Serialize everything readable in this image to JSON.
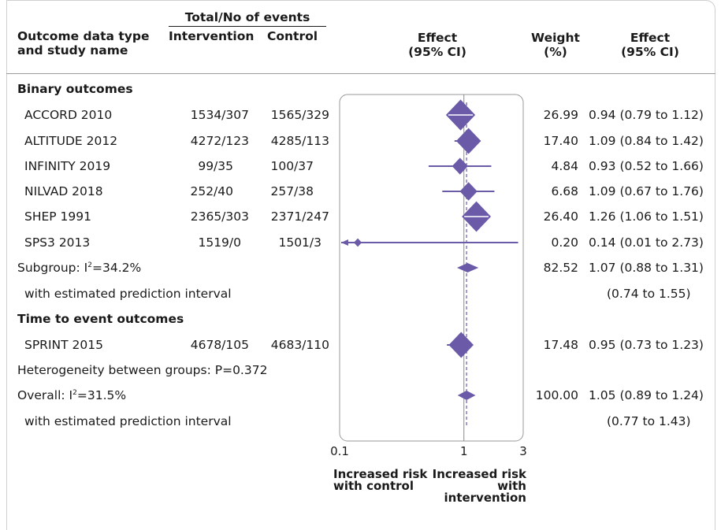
{
  "header": {
    "events_group": "Total/No of events",
    "col_study_line1": "Outcome data type",
    "col_study_line2": "and study name",
    "col_intervention": "Intervention",
    "col_control": "Control",
    "col_effect_plot_line1": "Effect",
    "col_effect_plot_line2": "(95% CI)",
    "col_weight_line1": "Weight",
    "col_weight_line2": "(%)",
    "col_effect_line1": "Effect",
    "col_effect_line2": "(95% CI)"
  },
  "rows": [
    {
      "kind": "section",
      "label": "Binary outcomes"
    },
    {
      "kind": "study",
      "label": "ACCORD 2010",
      "intervention": "1534/307",
      "control": "1565/329",
      "weight": "26.99",
      "effect_text": "0.94 (0.79 to 1.12)"
    },
    {
      "kind": "study",
      "label": "ALTITUDE 2012",
      "intervention": "4272/123",
      "control": "4285/113",
      "weight": "17.40",
      "effect_text": "1.09 (0.84 to 1.42)"
    },
    {
      "kind": "study",
      "label": "INFINITY 2019",
      "intervention": "99/35",
      "control": "100/37",
      "weight": "4.84",
      "effect_text": "0.93 (0.52 to 1.66)"
    },
    {
      "kind": "study",
      "label": "NILVAD 2018",
      "intervention": "252/40",
      "control": "257/38",
      "weight": "6.68",
      "effect_text": "1.09 (0.67 to 1.76)"
    },
    {
      "kind": "study",
      "label": "SHEP 1991",
      "intervention": "2365/303",
      "control": "2371/247",
      "weight": "26.40",
      "effect_text": "1.26 (1.06 to 1.51)"
    },
    {
      "kind": "study",
      "label": "SPS3 2013",
      "intervention": "1519/0",
      "control": "1501/3",
      "weight": "0.20",
      "effect_text": "0.14 (0.01 to 2.73)"
    },
    {
      "kind": "subtotal",
      "label_prefix": "Subgroup: I",
      "label_sup": "2",
      "label_suffix": "=34.2%",
      "weight": "82.52",
      "effect_text": "1.07 (0.88 to 1.31)"
    },
    {
      "kind": "pi",
      "label": "with estimated prediction interval",
      "effect_text": "(0.74 to 1.55)"
    },
    {
      "kind": "section",
      "label": "Time to event outcomes"
    },
    {
      "kind": "study",
      "label": "SPRINT 2015",
      "intervention": "4678/105",
      "control": "4683/110",
      "weight": "17.48",
      "effect_text": "0.95 (0.73 to 1.23)"
    },
    {
      "kind": "note",
      "label": "Heterogeneity between groups: P=0.372"
    },
    {
      "kind": "subtotal",
      "label_prefix": "Overall: I",
      "label_sup": "2",
      "label_suffix": "=31.5%",
      "weight": "100.00",
      "effect_text": "1.05 (0.89 to 1.24)"
    },
    {
      "kind": "pi",
      "label": "with estimated prediction interval",
      "effect_text": "(0.77 to 1.43)"
    }
  ],
  "chart_data": {
    "type": "forest",
    "x_scale": "log",
    "xlim": [
      0.1,
      3
    ],
    "x_ticks": [
      0.1,
      1,
      3
    ],
    "x_tick_labels": [
      "0.1",
      "1",
      "3"
    ],
    "reference_line": 1,
    "overall_effect_line": 1.05,
    "left_label": "Increased risk with control",
    "right_label": "Increased risk with intervention",
    "marker_color": "#6a5aa8",
    "studies": [
      {
        "name": "ACCORD 2010",
        "est": 0.94,
        "lo": 0.79,
        "hi": 1.12,
        "weight": 26.99
      },
      {
        "name": "ALTITUDE 2012",
        "est": 1.09,
        "lo": 0.84,
        "hi": 1.42,
        "weight": 17.4
      },
      {
        "name": "INFINITY 2019",
        "est": 0.93,
        "lo": 0.52,
        "hi": 1.66,
        "weight": 4.84
      },
      {
        "name": "NILVAD 2018",
        "est": 1.09,
        "lo": 0.67,
        "hi": 1.76,
        "weight": 6.68
      },
      {
        "name": "SHEP 1991",
        "est": 1.26,
        "lo": 1.06,
        "hi": 1.51,
        "weight": 26.4
      },
      {
        "name": "SPS3 2013",
        "est": 0.14,
        "lo": 0.01,
        "hi": 2.73,
        "weight": 0.2
      },
      {
        "name": "SPRINT 2015",
        "est": 0.95,
        "lo": 0.73,
        "hi": 1.23,
        "weight": 17.48
      }
    ],
    "pooled": [
      {
        "name": "Subgroup",
        "est": 1.07,
        "lo": 0.88,
        "hi": 1.31,
        "pi_lo": 0.74,
        "pi_hi": 1.55
      },
      {
        "name": "Overall",
        "est": 1.05,
        "lo": 0.89,
        "hi": 1.24,
        "pi_lo": 0.77,
        "pi_hi": 1.43
      }
    ]
  }
}
